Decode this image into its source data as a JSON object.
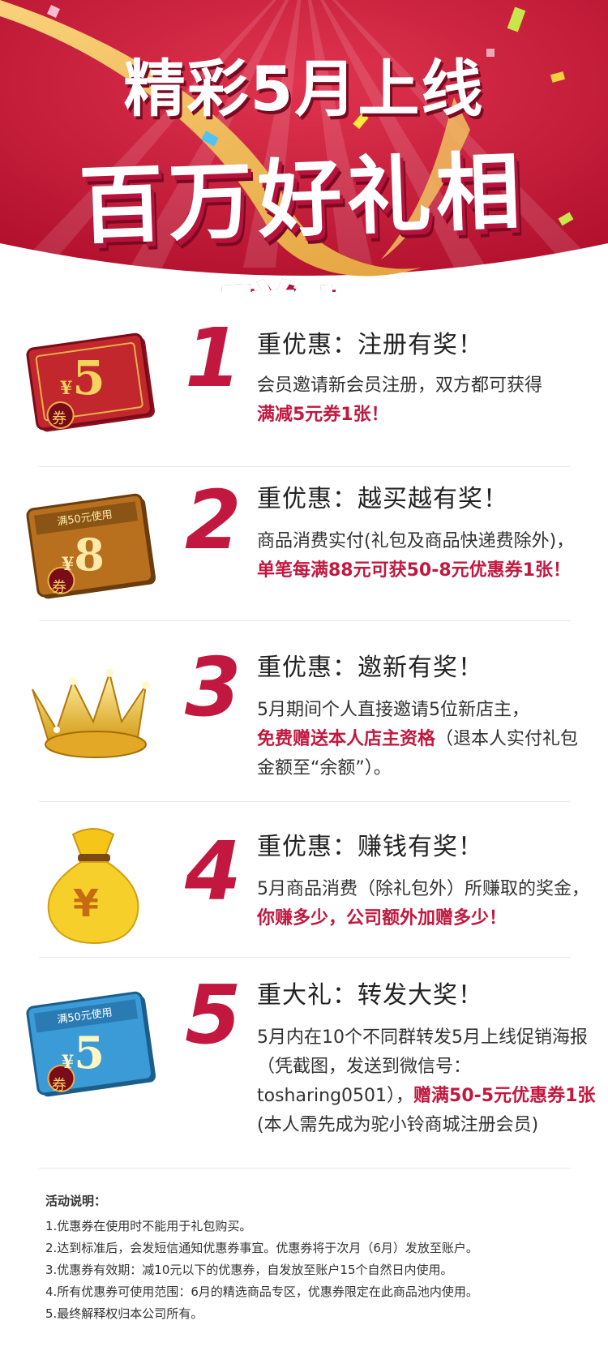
{
  "hero": {
    "title_line1": "精彩5月上线",
    "title_line2": "百万好礼相赠！"
  },
  "sections": [
    {
      "number": "1",
      "title": "重优惠：注册有奖！",
      "icon": "ticket-red-5-icon",
      "ticket_value": "5",
      "ticket_symbol": "¥",
      "ticket_stamp": "券",
      "body_plain": "会员邀请新会员注册，双方都可获得",
      "body_highlight": "满减5元券1张！"
    },
    {
      "number": "2",
      "title": "重优惠：越买越有奖！",
      "icon": "ticket-gold-8-icon",
      "ticket_value": "8",
      "ticket_symbol": "¥",
      "ticket_stamp": "券",
      "ticket_banner": "满50元使用",
      "body_plain": "商品消费实付(礼包及商品快递费除外)，",
      "body_highlight": "单笔每满88元可获50-8元优惠券1张！"
    },
    {
      "number": "3",
      "title": "重优惠：邀新有奖！",
      "icon": "crown-icon",
      "body_plain": "5月期间个人直接邀请5位新店主，",
      "body_highlight": "免费赠送本人店主资格",
      "body_tail": "（退本人实付礼包金额至“余额”）。"
    },
    {
      "number": "4",
      "title": "重优惠：赚钱有奖！",
      "icon": "money-bag-icon",
      "bag_symbol": "¥",
      "body_plain": "5月商品消费（除礼包外）所赚取的奖金，",
      "body_highlight": "你赚多少，公司额外加赠多少！"
    },
    {
      "number": "5",
      "title": "重大礼：转发大奖！",
      "icon": "ticket-blue-5-icon",
      "ticket_value": "5",
      "ticket_symbol": "¥",
      "ticket_stamp": "券",
      "ticket_banner": "满50元使用",
      "body_plain": "5月内在10个不同群转发5月上线促销海报（凭截图，发送到微信号：tosharing0501），",
      "body_highlight": "赠满50-5元优惠券1张",
      "body_tail": "(本人需先成为驼小铃商城注册会员)"
    }
  ],
  "notes": {
    "title": "活动说明：",
    "items": [
      "1.优惠券在使用时不能用于礼包购买。",
      "2.达到标准后，会发短信通知优惠券事宜。优惠券将于次月（6月）发放至账户。",
      "3.优惠券有效期：减10元以下的优惠券，自发放至账户15个自然日内使用。",
      "4.所有优惠券可使用范围：6月的精选商品专区，优惠券限定在此商品池内使用。",
      "5.最终解释权归本公司所有。"
    ]
  },
  "colors": {
    "accent": "#c2183f",
    "hero_bg": "#c91c3c",
    "gold": "#e8b14a"
  }
}
